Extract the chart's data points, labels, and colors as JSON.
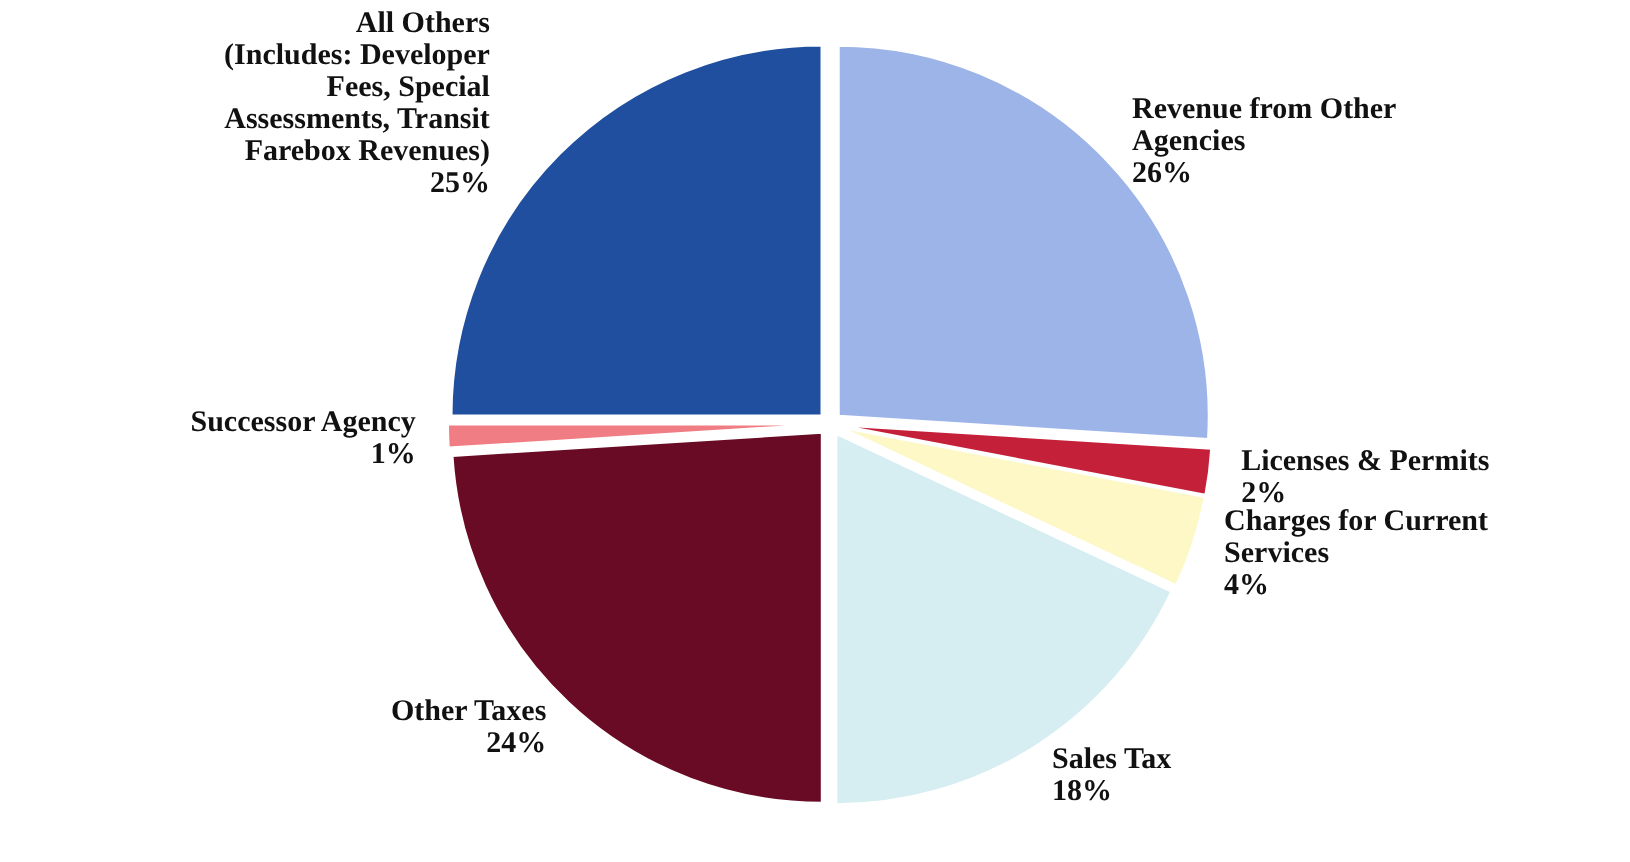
{
  "chart_data": {
    "type": "pie",
    "categories": [
      "Revenue from Other Agencies",
      "Licenses & Permits",
      "Charges for Current Services",
      "Sales Tax",
      "Other Taxes",
      "Successor Agency",
      "All Others (Includes: Developer Fees, Special Assessments, Transit Farebox Revenues)"
    ],
    "values": [
      26,
      2,
      4,
      18,
      24,
      1,
      25
    ],
    "colors": [
      "#9db4e8",
      "#c4203a",
      "#fdf8c6",
      "#d6eef1",
      "#6a0b25",
      "#f07c84",
      "#1f4f9e"
    ],
    "value_labels": [
      "26%",
      "2%",
      "4%",
      "18%",
      "24%",
      "1%",
      "25%"
    ]
  }
}
